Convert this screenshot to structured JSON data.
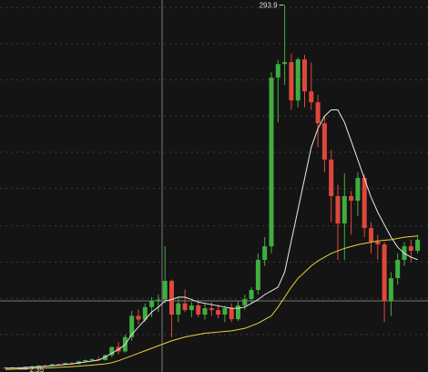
{
  "chart_data": {
    "type": "candlestick",
    "up_color": "#3fae3f",
    "down_color": "#e0473c",
    "grid": true,
    "ylim": [
      0,
      298
    ],
    "yticks": [
      30,
      59,
      88,
      117,
      147,
      176,
      205,
      234,
      263,
      292
    ],
    "annotations": [
      {
        "text": "293.9",
        "value": 293.9,
        "index": 42
      },
      {
        "text": "2.35",
        "value": 2.35,
        "index": 2
      }
    ],
    "ohlc": [
      [
        3.2,
        4.0,
        2.8,
        3.6
      ],
      [
        3.6,
        4.2,
        3.0,
        3.3
      ],
      [
        3.3,
        3.8,
        2.35,
        3.0
      ],
      [
        3.0,
        4.5,
        2.9,
        4.2
      ],
      [
        4.2,
        5.0,
        3.8,
        4.5
      ],
      [
        4.5,
        5.5,
        4.0,
        5.2
      ],
      [
        5.2,
        6.0,
        4.6,
        4.8
      ],
      [
        4.8,
        6.5,
        4.5,
        6.2
      ],
      [
        6.2,
        7.0,
        5.5,
        5.8
      ],
      [
        5.8,
        7.5,
        5.5,
        7.2
      ],
      [
        7.2,
        8.0,
        6.0,
        6.5
      ],
      [
        6.5,
        9.0,
        6.2,
        8.6
      ],
      [
        8.6,
        10.0,
        7.5,
        9.5
      ],
      [
        9.5,
        11.0,
        8.8,
        10.2
      ],
      [
        10.2,
        12.5,
        9.0,
        9.6
      ],
      [
        9.6,
        14.0,
        9.2,
        13.5
      ],
      [
        13.5,
        20.4,
        11.7,
        20.0
      ],
      [
        20.0,
        24.0,
        14.0,
        16.5
      ],
      [
        16.5,
        30.0,
        15.5,
        28.0
      ],
      [
        28.0,
        49.0,
        25.0,
        45.0
      ],
      [
        45.0,
        50.0,
        38.0,
        42.0
      ],
      [
        42.0,
        55.0,
        40.0,
        52.0
      ],
      [
        52.0,
        60.0,
        44.0,
        57.0
      ],
      [
        57.0,
        62.0,
        48.0,
        58.0
      ],
      [
        58.0,
        100.7,
        55.0,
        73.0
      ],
      [
        73.0,
        74.0,
        27.7,
        46.0
      ],
      [
        46.0,
        60.0,
        40.0,
        55.0
      ],
      [
        55.0,
        66.0,
        48.0,
        49.6
      ],
      [
        49.6,
        56.0,
        44.0,
        53.3
      ],
      [
        53.3,
        58.0,
        44.0,
        46.0
      ],
      [
        46.0,
        55.0,
        42.0,
        51.1
      ],
      [
        51.1,
        56.0,
        45.0,
        49.6
      ],
      [
        49.6,
        54.0,
        43.0,
        46.0
      ],
      [
        46.0,
        53.0,
        40.0,
        51.1
      ],
      [
        51.1,
        55.0,
        40.0,
        42.3
      ],
      [
        42.3,
        57.0,
        41.0,
        53.3
      ],
      [
        53.3,
        62.0,
        50.0,
        58.4
      ],
      [
        58.4,
        68.0,
        55.0,
        65.7
      ],
      [
        65.7,
        95.0,
        62.0,
        89.8
      ],
      [
        89.8,
        108.0,
        85.0,
        100.7
      ],
      [
        100.7,
        240.0,
        95.0,
        235.8
      ],
      [
        235.8,
        250.0,
        200.0,
        246.7
      ],
      [
        246.7,
        293.9,
        230.0,
        248.2
      ],
      [
        248.2,
        255.0,
        210.0,
        217.5
      ],
      [
        217.5,
        252.0,
        212.0,
        250.4
      ],
      [
        250.4,
        254.0,
        212.0,
        224.8
      ],
      [
        224.8,
        248.0,
        210.0,
        216.1
      ],
      [
        216.1,
        222.0,
        180.0,
        199.3
      ],
      [
        199.3,
        205.0,
        160.0,
        170.1
      ],
      [
        170.1,
        178.0,
        120.0,
        140.9
      ],
      [
        140.9,
        150.0,
        90.0,
        119.0
      ],
      [
        119.0,
        159.1,
        89.8,
        140.9
      ],
      [
        140.9,
        145.0,
        110.0,
        137.2
      ],
      [
        137.2,
        160.0,
        125.0,
        155.5
      ],
      [
        155.5,
        158.0,
        108.0,
        115.3
      ],
      [
        115.3,
        120.0,
        95.0,
        104.4
      ],
      [
        104.4,
        110.0,
        90.0,
        102.2
      ],
      [
        102.2,
        104.0,
        40.0,
        56.9
      ],
      [
        56.9,
        80.0,
        45.0,
        75.2
      ],
      [
        75.2,
        95.0,
        70.0,
        89.8
      ],
      [
        89.8,
        104.0,
        85.0,
        100.7
      ],
      [
        100.7,
        106.0,
        88.0,
        97.1
      ],
      [
        97.1,
        110.0,
        95.0,
        106.0
      ]
    ],
    "series": [
      {
        "color": "#e8e8e8",
        "values": [
          3,
          3.2,
          3.3,
          3.6,
          3.9,
          4.2,
          4.6,
          5,
          5.5,
          6,
          6.5,
          7.2,
          8,
          8.8,
          9.5,
          12,
          15,
          18,
          22,
          30,
          36,
          42,
          48,
          52,
          57,
          58,
          60,
          60,
          58,
          56,
          55,
          54,
          53,
          52,
          51,
          51,
          52,
          55,
          58,
          62,
          65,
          68,
          80,
          105,
          130,
          155,
          180,
          195,
          205,
          210,
          210,
          200,
          185,
          170,
          155,
          140,
          128,
          118,
          108,
          100,
          95,
          92,
          90
        ]
      },
      {
        "color": "#e6d23c",
        "values": [
          2,
          2.2,
          2.4,
          2.6,
          2.8,
          3,
          3.2,
          3.4,
          3.7,
          4,
          4.3,
          4.7,
          5.1,
          5.5,
          6,
          6.5,
          7.5,
          9,
          11,
          13,
          15,
          17,
          19,
          21,
          23,
          25,
          26.5,
          28,
          29,
          30,
          31,
          31.5,
          32,
          32.5,
          33,
          34,
          35,
          37,
          39,
          42,
          45,
          52,
          60,
          68,
          75,
          80,
          85,
          89,
          92,
          95,
          97,
          99,
          100.5,
          102,
          103,
          104,
          105,
          105.5,
          106,
          107,
          108,
          108.5,
          109
        ]
      }
    ]
  }
}
